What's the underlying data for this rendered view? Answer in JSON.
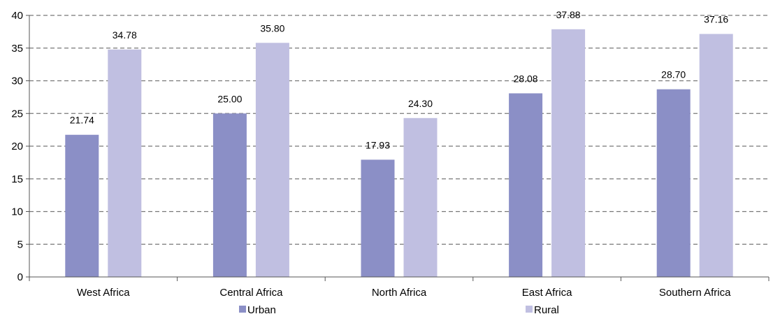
{
  "chart_data": {
    "type": "bar",
    "title": "",
    "xlabel": "",
    "ylabel": "",
    "categories": [
      "West Africa",
      "Central Africa",
      "North Africa",
      "East Africa",
      "Southern Africa"
    ],
    "series": [
      {
        "name": "Urban",
        "color": "#8b8fc6",
        "values": [
          21.74,
          25.0,
          17.93,
          28.08,
          28.7
        ],
        "labels": [
          "21.74",
          "25.00",
          "17.93",
          "28.08",
          "28.70"
        ]
      },
      {
        "name": "Rural",
        "color": "#c0bfe1",
        "values": [
          34.78,
          35.8,
          24.3,
          37.88,
          37.16
        ],
        "labels": [
          "34.78",
          "35.80",
          "24.30",
          "37.88",
          "37.16"
        ]
      }
    ],
    "ylim": [
      0,
      40
    ],
    "yticks": [
      0,
      5,
      10,
      15,
      20,
      25,
      30,
      35,
      40
    ],
    "grid": true,
    "grid_style": "dashed",
    "legend_position": "bottom"
  }
}
